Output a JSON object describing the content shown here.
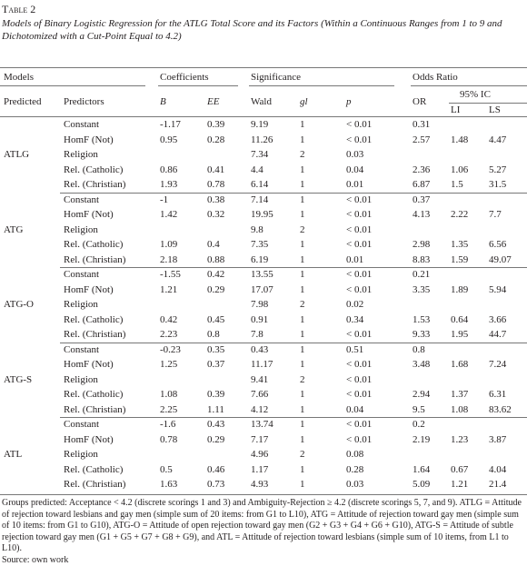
{
  "header": {
    "title": "Table 2",
    "subtitle": "Models of Binary Logistic Regression for the ATLG Total Score and its Factors (Within a Continuous Ranges from 1 to 9 and Dichotomized with a Cut-Point Equal to 4.2)"
  },
  "table": {
    "headers": {
      "models": "Models",
      "coefficients": "Coefficients",
      "significance": "Significance",
      "odds_ratio": "Odds Ratio",
      "predicted": "Predicted",
      "predictors": "Predictors",
      "b": "B",
      "ee": "EE",
      "wald": "Wald",
      "gl": "gl",
      "p": "p",
      "or": "OR",
      "ic": "95% IC",
      "li": "LI",
      "ls": "LS"
    },
    "groups": [
      {
        "model": "ATLG",
        "rows": [
          [
            "Constant",
            "-1.17",
            "0.39",
            "9.19",
            "1",
            "< 0.01",
            "0.31",
            null,
            null
          ],
          [
            "HomF (Not)",
            "0.95",
            "0.28",
            "11.26",
            "1",
            "< 0.01",
            "2.57",
            "1.48",
            "4.47"
          ],
          [
            "Religion",
            null,
            null,
            "7.34",
            "2",
            "0.03",
            null,
            null,
            null
          ],
          [
            "Rel. (Catholic)",
            "0.86",
            "0.41",
            "4.4",
            "1",
            "0.04",
            "2.36",
            "1.06",
            "5.27"
          ],
          [
            "Rel. (Christian)",
            "1.93",
            "0.78",
            "6.14",
            "1",
            "0.01",
            "6.87",
            "1.5",
            "31.5"
          ]
        ]
      },
      {
        "model": "ATG",
        "rows": [
          [
            "Constant",
            "-1",
            "0.38",
            "7.14",
            "1",
            "< 0.01",
            "0.37",
            null,
            null
          ],
          [
            "HomF (Not)",
            "1.42",
            "0.32",
            "19.95",
            "1",
            "< 0.01",
            "4.13",
            "2.22",
            "7.7"
          ],
          [
            "Religion",
            null,
            null,
            "9.8",
            "2",
            "< 0.01",
            null,
            null,
            null
          ],
          [
            "Rel. (Catholic)",
            "1.09",
            "0.4",
            "7.35",
            "1",
            "< 0.01",
            "2.98",
            "1.35",
            "6.56"
          ],
          [
            "Rel. (Christian)",
            "2.18",
            "0.88",
            "6.19",
            "1",
            "0.01",
            "8.83",
            "1.59",
            "49.07"
          ]
        ]
      },
      {
        "model": "ATG-O",
        "rows": [
          [
            "Constant",
            "-1.55",
            "0.42",
            "13.55",
            "1",
            "< 0.01",
            "0.21",
            null,
            null
          ],
          [
            "HomF (Not)",
            "1.21",
            "0.29",
            "17.07",
            "1",
            "< 0.01",
            "3.35",
            "1.89",
            "5.94"
          ],
          [
            "Religion",
            null,
            null,
            "7.98",
            "2",
            "0.02",
            null,
            null,
            null
          ],
          [
            "Rel. (Catholic)",
            "0.42",
            "0.45",
            "0.91",
            "1",
            "0.34",
            "1.53",
            "0.64",
            "3.66"
          ],
          [
            "Rel. (Christian)",
            "2.23",
            "0.8",
            "7.8",
            "1",
            "< 0.01",
            "9.33",
            "1.95",
            "44.7"
          ]
        ]
      },
      {
        "model": "ATG-S",
        "rows": [
          [
            "Constant",
            "-0.23",
            "0.35",
            "0.43",
            "1",
            "0.51",
            "0.8",
            null,
            null
          ],
          [
            "HomF (Not)",
            "1.25",
            "0.37",
            "11.17",
            "1",
            "< 0.01",
            "3.48",
            "1.68",
            "7.24"
          ],
          [
            "Religion",
            null,
            null,
            "9.41",
            "2",
            "< 0.01",
            null,
            null,
            null
          ],
          [
            "Rel. (Catholic)",
            "1.08",
            "0.39",
            "7.66",
            "1",
            "< 0.01",
            "2.94",
            "1.37",
            "6.31"
          ],
          [
            "Rel. (Christian)",
            "2.25",
            "1.11",
            "4.12",
            "1",
            "0.04",
            "9.5",
            "1.08",
            "83.62"
          ]
        ]
      },
      {
        "model": "ATL",
        "rows": [
          [
            "Constant",
            "-1.6",
            "0.43",
            "13.74",
            "1",
            "< 0.01",
            "0.2",
            null,
            null
          ],
          [
            "HomF (Not)",
            "0.78",
            "0.29",
            "7.17",
            "1",
            "< 0.01",
            "2.19",
            "1.23",
            "3.87"
          ],
          [
            "Religion",
            null,
            null,
            "4.96",
            "2",
            "0.08",
            null,
            null,
            null
          ],
          [
            "Rel. (Catholic)",
            "0.5",
            "0.46",
            "1.17",
            "1",
            "0.28",
            "1.64",
            "0.67",
            "4.04"
          ],
          [
            "Rel. (Christian)",
            "1.63",
            "0.73",
            "4.93",
            "1",
            "0.03",
            "5.09",
            "1.21",
            "21.4"
          ]
        ]
      }
    ]
  },
  "notes": {
    "text": "Groups predicted: Acceptance < 4.2 (discrete scorings 1 and 3) and Ambiguity-Rejection ≥ 4.2 (discrete scorings 5, 7, and 9). ATLG = Attitude of rejection toward lesbians and gay men (simple sum of 20 items: from G1 to L10), ATG = Attitude of rejection toward gay men (simple sum of 10 items: from G1 to G10), ATG-O = Attitude of open rejection toward gay men (G2 + G3 + G4 + G6 + G10), ATG-S = Attitude of subtle rejection toward gay men (G1 + G5 + G7 + G8 + G9), and ATL = Attitude of rejection toward lesbians (simple sum of 10 items, from L1 to L10).",
    "source": "Source: own work"
  }
}
